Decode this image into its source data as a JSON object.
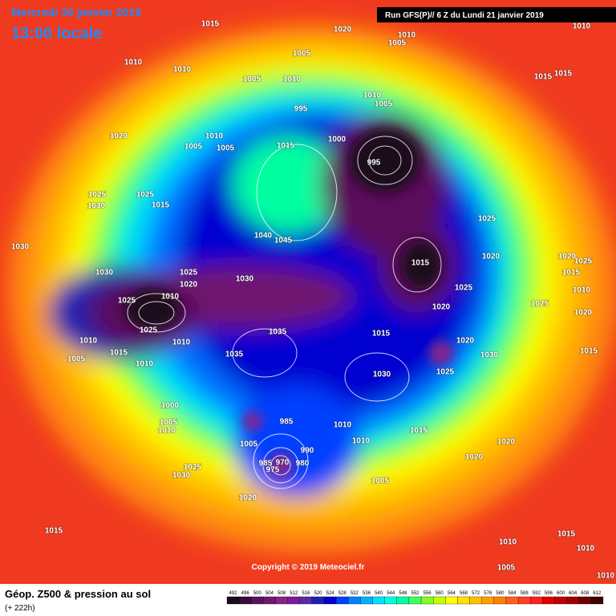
{
  "header": {
    "date": "Mercredi 30 janvier 2019",
    "time": "13:00 locale",
    "run": "Run GFS(P)// 6 Z du Lundi 21 janvier 2019"
  },
  "copyright": "Copyright © 2019 Meteociel.fr",
  "legend": {
    "title": "Géop. Z500 & pression au sol",
    "subtitle": "(+ 222h)",
    "values": [
      492,
      496,
      500,
      504,
      508,
      512,
      516,
      520,
      524,
      528,
      532,
      536,
      540,
      544,
      548,
      552,
      556,
      560,
      564,
      568,
      572,
      576,
      580,
      584,
      588,
      592,
      596,
      600,
      604,
      608,
      612
    ],
    "colors": [
      "#1a0a1a",
      "#3a0a3a",
      "#5a105a",
      "#701870",
      "#8a208a",
      "#7a1a9a",
      "#5a2aaa",
      "#2020b0",
      "#0000d0",
      "#0040ff",
      "#0080ff",
      "#00b0ff",
      "#00e0ff",
      "#00ffe0",
      "#00ffa0",
      "#40ff60",
      "#80ff20",
      "#c0ff00",
      "#ffff00",
      "#ffe000",
      "#ffc000",
      "#ffa000",
      "#ff8000",
      "#ff6020",
      "#ff4020",
      "#ff2020",
      "#e00000",
      "#c00000",
      "#a00000",
      "#700000",
      "#400000"
    ]
  },
  "isobar_labels": [
    1015,
    1020,
    1010,
    1005,
    1010,
    1010,
    1005,
    1010,
    1005,
    1010,
    1015,
    1015,
    1010,
    1005,
    995,
    1020,
    1010,
    1005,
    1005,
    1015,
    1000,
    995,
    1025,
    1025,
    1030,
    1015,
    1025,
    1030,
    1040,
    1045,
    1015,
    1020,
    1020,
    1025,
    1030,
    1025,
    1020,
    1030,
    1025,
    1015,
    1010,
    1025,
    1010,
    1020,
    1025,
    1020,
    1025,
    1035,
    1015,
    1010,
    1015,
    1010,
    1020,
    1035,
    1030,
    1015,
    1005,
    1010,
    1030,
    1025,
    1000,
    985,
    1005,
    1010,
    1010,
    1015,
    1010,
    1005,
    990,
    1020,
    985,
    970,
    980,
    975,
    1020,
    1025,
    1030,
    1005,
    1020,
    1015,
    1015,
    1010,
    1010,
    1005,
    1010
  ]
}
